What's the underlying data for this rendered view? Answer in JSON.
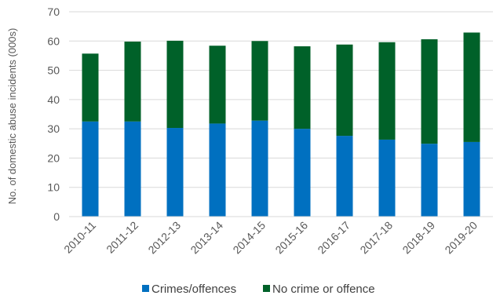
{
  "chart_data": {
    "type": "bar",
    "stacked": true,
    "title": "",
    "xlabel": "",
    "ylabel": "No. of domestic abuse incidents (000s)",
    "ylim": [
      0,
      70
    ],
    "yticks": [
      0,
      10,
      20,
      30,
      40,
      50,
      60,
      70
    ],
    "grid": true,
    "legend_position": "bottom",
    "categories": [
      "2010-11",
      "2011-12",
      "2012-13",
      "2013-14",
      "2014-15",
      "2015-16",
      "2016-17",
      "2017-18",
      "2018-19",
      "2019-20"
    ],
    "series": [
      {
        "name": "Crimes/offences",
        "color": "#0070C0",
        "values": [
          32.5,
          32.5,
          30.3,
          31.8,
          32.8,
          30.0,
          27.6,
          26.3,
          24.9,
          25.5
        ]
      },
      {
        "name": "No crime or offence",
        "color": "#006129",
        "values": [
          23.2,
          27.3,
          29.8,
          26.6,
          27.2,
          28.2,
          31.2,
          33.3,
          35.7,
          37.4
        ]
      }
    ]
  }
}
